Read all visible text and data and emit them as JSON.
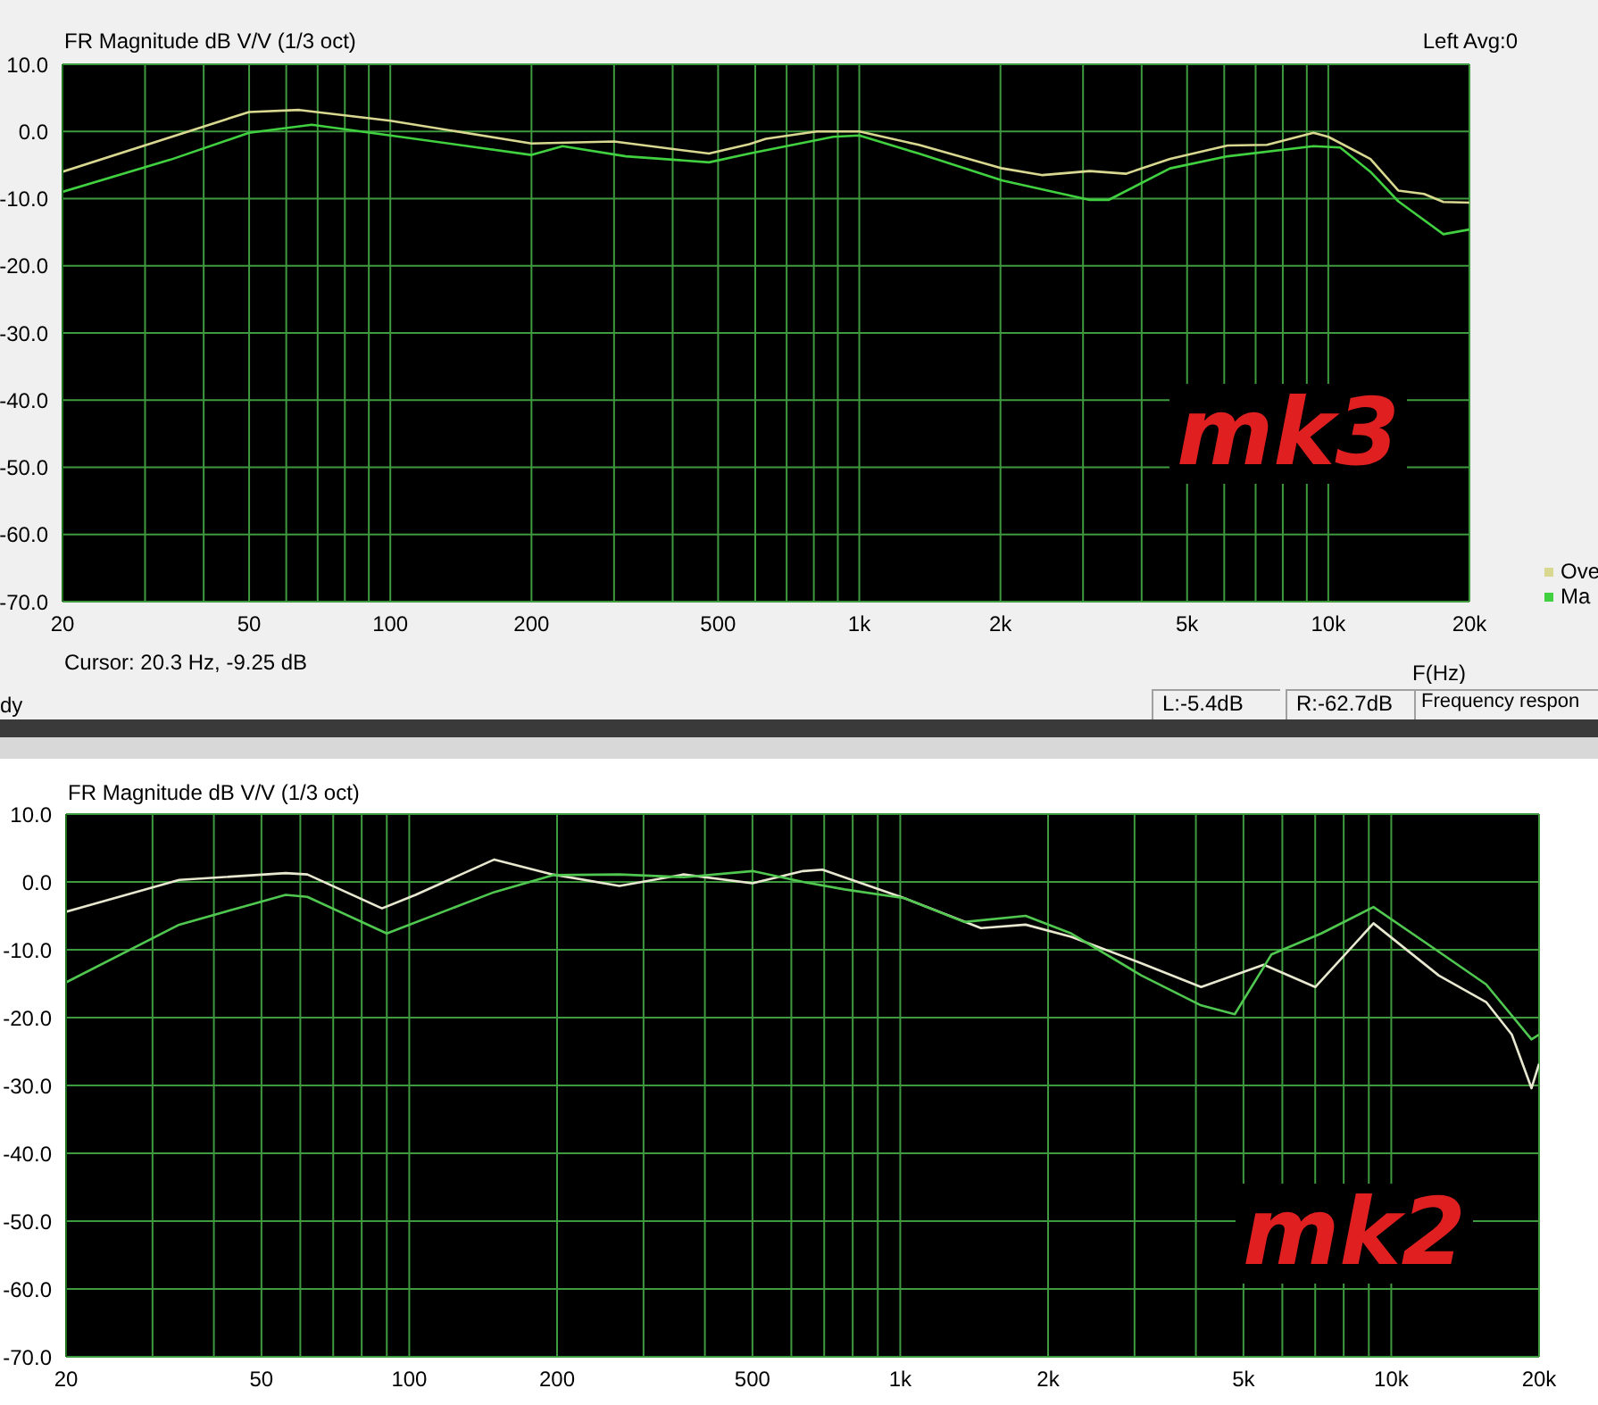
{
  "chart_data": [
    {
      "type": "line",
      "title": "FR Magnitude dB V/V (1/3 oct)",
      "xlabel": "F(Hz)",
      "log": "x",
      "grid": true,
      "legend": "bottom right",
      "line_style": "solid",
      "marker": "none",
      "xlim": [
        20,
        20000
      ],
      "xticks": [
        20,
        {
          "value": 30,
          "label": null
        },
        {
          "value": 40,
          "label": null
        },
        50,
        {
          "value": 60,
          "label": null
        },
        {
          "value": 70,
          "label": null
        },
        {
          "value": 80,
          "label": null
        },
        {
          "value": 90,
          "label": null
        },
        100,
        200,
        {
          "value": 300,
          "label": null
        },
        {
          "value": 400,
          "label": null
        },
        500,
        {
          "value": 600,
          "label": null
        },
        {
          "value": 700,
          "label": null
        },
        {
          "value": 800,
          "label": null
        },
        {
          "value": 900,
          "label": null
        },
        {
          "value": 1000,
          "label": "1k"
        },
        {
          "value": 2000,
          "label": "2k"
        },
        {
          "value": 3000,
          "label": null
        },
        {
          "value": 4000,
          "label": null
        },
        {
          "value": 5000,
          "label": "5k"
        },
        {
          "value": 6000,
          "label": null
        },
        {
          "value": 7000,
          "label": null
        },
        {
          "value": 8000,
          "label": null
        },
        {
          "value": 9000,
          "label": null
        },
        {
          "value": 10000,
          "label": "10k"
        },
        {
          "value": 20000,
          "label": "20k"
        }
      ],
      "ylim": [
        -70,
        10
      ],
      "yticks": [
        {
          "value": 10,
          "label": "10.0"
        },
        {
          "value": 0,
          "label": "0.0"
        },
        {
          "value": -10,
          "label": "-10.0"
        },
        {
          "value": -20,
          "label": "-20.0"
        },
        {
          "value": -30,
          "label": "-30.0"
        },
        {
          "value": -40,
          "label": "-40.0"
        },
        {
          "value": -50,
          "label": "-50.0"
        },
        {
          "value": -60,
          "label": "-60.0"
        },
        {
          "value": -70,
          "label": "-70.0"
        }
      ],
      "annotations": [
        "Left Avg:0",
        "mk3",
        "Cursor:  20.3 Hz, -9.25 dB",
        "dy",
        "L:-5.4dB",
        "R:-62.7dB",
        "Frequency respon"
      ],
      "series": [
        {
          "name": "Ove",
          "color": "#d8d890",
          "x": [
            20,
            50,
            64,
            100,
            200,
            300,
            478,
            583,
            632,
            812,
            1000,
            1340,
            2020,
            2460,
            3100,
            3700,
            4600,
            6100,
            7400,
            9300,
            10000,
            12300,
            14100,
            16000,
            17600,
            20000
          ],
          "values": [
            -6.0,
            2.9,
            3.2,
            1.6,
            -1.8,
            -1.5,
            -3.3,
            -1.9,
            -1.1,
            0,
            0,
            -2,
            -5.5,
            -6.5,
            -5.9,
            -6.3,
            -4.1,
            -2.1,
            -2,
            -0.2,
            -0.8,
            -4.1,
            -8.8,
            -9.3,
            -10.5,
            -10.6
          ]
        },
        {
          "name": "Ma",
          "color": "#40d040",
          "x": [
            20,
            34,
            50,
            68,
            100,
            200,
            233,
            318,
            478,
            583,
            880,
            1000,
            1340,
            2020,
            3100,
            3400,
            4600,
            6100,
            9300,
            10600,
            12300,
            14100,
            17600,
            20000
          ],
          "values": [
            -9.0,
            -4.2,
            -0.2,
            1.0,
            -0.6,
            -3.5,
            -2.2,
            -3.7,
            -4.6,
            -3.3,
            -0.8,
            -0.6,
            -3.3,
            -7.3,
            -10.2,
            -10.2,
            -5.5,
            -3.7,
            -2.2,
            -2.4,
            -6,
            -10.4,
            -15.3,
            -14.6
          ]
        }
      ]
    },
    {
      "type": "line",
      "title": "FR Magnitude dB V/V (1/3 oct)",
      "log": "x",
      "grid": true,
      "line_style": "solid",
      "marker": "none",
      "xlim": [
        20,
        20000
      ],
      "xticks": [
        20,
        {
          "value": 30,
          "label": null
        },
        {
          "value": 40,
          "label": null
        },
        50,
        {
          "value": 60,
          "label": null
        },
        {
          "value": 70,
          "label": null
        },
        {
          "value": 80,
          "label": null
        },
        {
          "value": 90,
          "label": null
        },
        100,
        200,
        {
          "value": 300,
          "label": null
        },
        {
          "value": 400,
          "label": null
        },
        500,
        {
          "value": 600,
          "label": null
        },
        {
          "value": 700,
          "label": null
        },
        {
          "value": 800,
          "label": null
        },
        {
          "value": 900,
          "label": null
        },
        {
          "value": 1000,
          "label": "1k"
        },
        {
          "value": 2000,
          "label": "2k"
        },
        {
          "value": 3000,
          "label": null
        },
        {
          "value": 4000,
          "label": null
        },
        {
          "value": 5000,
          "label": "5k"
        },
        {
          "value": 6000,
          "label": null
        },
        {
          "value": 7000,
          "label": null
        },
        {
          "value": 8000,
          "label": null
        },
        {
          "value": 9000,
          "label": null
        },
        {
          "value": 10000,
          "label": "10k"
        },
        {
          "value": 20000,
          "label": "20k"
        }
      ],
      "ylim": [
        -70,
        10
      ],
      "yticks": [
        {
          "value": 10,
          "label": "10.0"
        },
        {
          "value": 0,
          "label": "0.0"
        },
        {
          "value": -10,
          "label": "-10.0"
        },
        {
          "value": -20,
          "label": "-20.0"
        },
        {
          "value": -30,
          "label": "-30.0"
        },
        {
          "value": -40,
          "label": "-40.0"
        },
        {
          "value": -50,
          "label": "-50.0"
        },
        {
          "value": -60,
          "label": "-60.0"
        },
        {
          "value": -70,
          "label": "-70.0"
        }
      ],
      "annotations": [
        "mk2"
      ],
      "series": [
        {
          "color": "#e8e8d0",
          "x": [
            20,
            34,
            56,
            62,
            88,
            103,
            149,
            196,
            268,
            362,
            500,
            634,
            694,
            1020,
            1460,
            1800,
            2230,
            3100,
            4100,
            5500,
            7000,
            9200,
            12500,
            15600,
            17600,
            19300,
            20000
          ],
          "values": [
            -4.4,
            0.3,
            1.3,
            1.1,
            -3.9,
            -1.9,
            3.3,
            1.1,
            -0.6,
            1.1,
            -0.2,
            1.6,
            1.8,
            -2.4,
            -6.8,
            -6.3,
            -8.1,
            -12,
            -15.5,
            -12.2,
            -15.5,
            -6.1,
            -13.8,
            -17.7,
            -22.5,
            -30.4,
            -26.8
          ]
        },
        {
          "color": "#50c850",
          "x": [
            20,
            34,
            56,
            62,
            90,
            149,
            196,
            268,
            362,
            500,
            634,
            770,
            1020,
            1350,
            1800,
            2230,
            3100,
            4100,
            4800,
            5700,
            7200,
            9200,
            12500,
            15600,
            19300,
            20000
          ],
          "values": [
            -14.8,
            -6.3,
            -1.9,
            -2.2,
            -7.6,
            -1.5,
            1.0,
            1.1,
            0.7,
            1.6,
            0,
            -1.1,
            -2.4,
            -5.9,
            -5.0,
            -7.6,
            -13.8,
            -18.2,
            -19.5,
            -10.7,
            -7.6,
            -3.7,
            -10.3,
            -15.1,
            -23.2,
            -22.5
          ]
        }
      ]
    }
  ]
}
